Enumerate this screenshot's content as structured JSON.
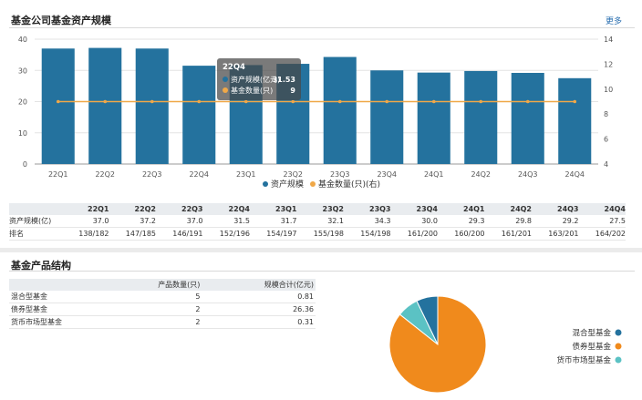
{
  "header": {
    "title": "基金公司基金资产规模",
    "more_label": "更多"
  },
  "chart_data": [
    {
      "type": "bar",
      "categories": [
        "22Q1",
        "22Q2",
        "22Q3",
        "22Q4",
        "23Q1",
        "23Q2",
        "23Q3",
        "23Q4",
        "24Q1",
        "24Q2",
        "24Q3",
        "24Q4"
      ],
      "series": [
        {
          "name": "资产规模",
          "type": "bar",
          "axis": "left",
          "color": "#24729e",
          "values": [
            37.0,
            37.2,
            37.0,
            31.5,
            31.7,
            32.1,
            34.3,
            30.0,
            29.3,
            29.8,
            29.2,
            27.5
          ]
        },
        {
          "name": "基金数量(只)(右)",
          "type": "line",
          "axis": "right",
          "color": "#f0a848",
          "values": [
            9,
            9,
            9,
            9,
            9,
            9,
            9,
            9,
            9,
            9,
            9,
            9
          ]
        }
      ],
      "y_left": {
        "min": 0,
        "max": 40,
        "ticks": [
          0,
          10,
          20,
          30,
          40
        ]
      },
      "y_right": {
        "min": 4,
        "max": 14,
        "ticks": [
          4,
          6,
          8,
          10,
          12,
          14
        ]
      },
      "legend_position": "bottom-center",
      "tooltip": {
        "title": "22Q4",
        "rows": [
          {
            "label": "资产规模(亿元)",
            "value": "31.53",
            "color": "#24729e"
          },
          {
            "label": "基金数量(只)",
            "value": "9",
            "color": "#f0a848"
          }
        ]
      }
    },
    {
      "type": "pie",
      "labels": [
        "混合型基金",
        "债券型基金",
        "货币市场型基金"
      ],
      "values": [
        0.81,
        26.36,
        0.31
      ],
      "colors": [
        "#24729e",
        "#f08a1c",
        "#5bc2c4"
      ],
      "legend_position": "right"
    }
  ],
  "quarter_table": {
    "headers": [
      "22Q1",
      "22Q2",
      "22Q3",
      "22Q4",
      "23Q1",
      "23Q2",
      "23Q3",
      "23Q4",
      "24Q1",
      "24Q2",
      "24Q3",
      "24Q4"
    ],
    "rows": [
      {
        "label": "资产规模(亿)",
        "cells": [
          "37.0",
          "37.2",
          "37.0",
          "31.5",
          "31.7",
          "32.1",
          "34.3",
          "30.0",
          "29.3",
          "29.8",
          "29.2",
          "27.5"
        ]
      },
      {
        "label": "排名",
        "cells": [
          "138/182",
          "147/185",
          "146/191",
          "152/196",
          "154/197",
          "155/198",
          "154/198",
          "161/200",
          "160/200",
          "161/201",
          "163/201",
          "164/202"
        ]
      }
    ]
  },
  "product_section": {
    "title": "基金产品结构",
    "headers": [
      "",
      "产品数量(只)",
      "规模合计(亿元)"
    ],
    "rows": [
      {
        "name": "混合型基金",
        "count": "5",
        "size": "0.81"
      },
      {
        "name": "债券型基金",
        "count": "2",
        "size": "26.36"
      },
      {
        "name": "货币市场型基金",
        "count": "2",
        "size": "0.31"
      }
    ]
  }
}
